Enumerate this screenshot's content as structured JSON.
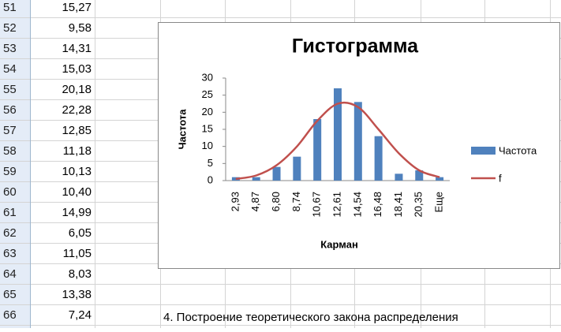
{
  "sheet": {
    "rows": [
      {
        "number": "51",
        "value": "15,27"
      },
      {
        "number": "52",
        "value": "9,58"
      },
      {
        "number": "53",
        "value": "14,31"
      },
      {
        "number": "54",
        "value": "15,03"
      },
      {
        "number": "55",
        "value": "20,18"
      },
      {
        "number": "56",
        "value": "22,28"
      },
      {
        "number": "57",
        "value": "12,85"
      },
      {
        "number": "58",
        "value": "11,18"
      },
      {
        "number": "59",
        "value": "10,13"
      },
      {
        "number": "60",
        "value": "10,40"
      },
      {
        "number": "61",
        "value": "14,99"
      },
      {
        "number": "62",
        "value": "6,05"
      },
      {
        "number": "63",
        "value": "11,05"
      },
      {
        "number": "64",
        "value": "8,03"
      },
      {
        "number": "65",
        "value": "13,38"
      },
      {
        "number": "66",
        "value": "7,24"
      }
    ],
    "note": "4.  Построение теоретического закона распределения"
  },
  "chart_data": {
    "type": "bar",
    "title": "Гистограмма",
    "x_label": "Карман",
    "y_label": "Частота",
    "categories": [
      "2,93",
      "4,87",
      "6,80",
      "8,74",
      "10,67",
      "12,61",
      "14,54",
      "16,48",
      "18,41",
      "20,35",
      "Еще"
    ],
    "series": [
      {
        "name": "Частота",
        "type": "bar",
        "color": "#4f81bd",
        "values": [
          1,
          1,
          4,
          7,
          18,
          27,
          23,
          13,
          2,
          3,
          1
        ]
      },
      {
        "name": "f",
        "type": "line",
        "color": "#c0504d",
        "values": [
          0.5,
          1.5,
          4.5,
          10,
          17.5,
          22.5,
          21.5,
          15,
          8,
          3,
          1
        ]
      }
    ],
    "ylim": [
      0,
      30
    ],
    "yticks": [
      0,
      5,
      10,
      15,
      20,
      25,
      30
    ],
    "grid": false,
    "legend": "right"
  }
}
